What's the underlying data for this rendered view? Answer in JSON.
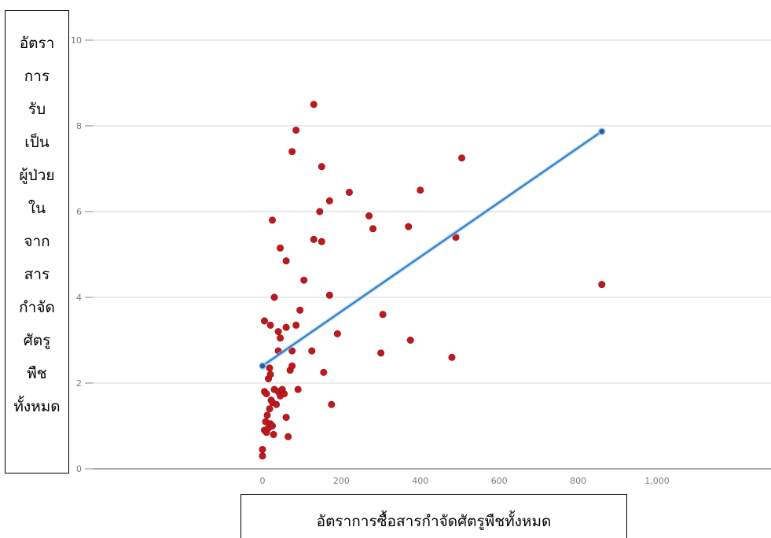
{
  "chart_data": {
    "type": "scatter",
    "xlabel": "อัตราการซื้อสารกำจัดศัตรูพืชทั้งหมด",
    "ylabel_lines": [
      "อัตรา",
      "การ",
      "รับ",
      "เป็น",
      "ผู้ป่วย",
      "ใน",
      "จาก",
      "สาร",
      "กำจัด",
      "ศัตรู",
      "พืช",
      "ทั้งหมด"
    ],
    "xlim": [
      0,
      1000
    ],
    "ylim": [
      0,
      10
    ],
    "x_ticks": [
      "0",
      "200",
      "400",
      "600",
      "800",
      "1,000"
    ],
    "y_ticks": [
      "0",
      "2",
      "4",
      "6",
      "8",
      "10"
    ],
    "grid": "horizontal",
    "colors": {
      "points": "#c0181f",
      "trend": "#2a7fd0",
      "grid": "#d4d4d4",
      "axis": "#8a8a8a"
    },
    "points": [
      {
        "x": 0,
        "y": 0.3
      },
      {
        "x": 0,
        "y": 0.45
      },
      {
        "x": 5,
        "y": 0.9
      },
      {
        "x": 8,
        "y": 1.1
      },
      {
        "x": 10,
        "y": 0.85
      },
      {
        "x": 12,
        "y": 1.25
      },
      {
        "x": 15,
        "y": 0.95
      },
      {
        "x": 18,
        "y": 1.4
      },
      {
        "x": 20,
        "y": 1.05
      },
      {
        "x": 22,
        "y": 1.6
      },
      {
        "x": 25,
        "y": 1.0
      },
      {
        "x": 28,
        "y": 0.8
      },
      {
        "x": 5,
        "y": 1.8
      },
      {
        "x": 10,
        "y": 1.75
      },
      {
        "x": 15,
        "y": 2.1
      },
      {
        "x": 18,
        "y": 2.35
      },
      {
        "x": 20,
        "y": 2.2
      },
      {
        "x": 25,
        "y": 1.55
      },
      {
        "x": 30,
        "y": 1.85
      },
      {
        "x": 35,
        "y": 1.5
      },
      {
        "x": 40,
        "y": 1.8
      },
      {
        "x": 45,
        "y": 1.7
      },
      {
        "x": 50,
        "y": 1.85
      },
      {
        "x": 55,
        "y": 1.75
      },
      {
        "x": 60,
        "y": 1.2
      },
      {
        "x": 65,
        "y": 0.75
      },
      {
        "x": 70,
        "y": 2.3
      },
      {
        "x": 75,
        "y": 2.4
      },
      {
        "x": 90,
        "y": 1.85
      },
      {
        "x": 5,
        "y": 3.45
      },
      {
        "x": 20,
        "y": 3.35
      },
      {
        "x": 30,
        "y": 4.0
      },
      {
        "x": 40,
        "y": 3.2
      },
      {
        "x": 45,
        "y": 3.05
      },
      {
        "x": 40,
        "y": 2.75
      },
      {
        "x": 60,
        "y": 3.3
      },
      {
        "x": 75,
        "y": 2.75
      },
      {
        "x": 85,
        "y": 3.35
      },
      {
        "x": 95,
        "y": 3.7
      },
      {
        "x": 25,
        "y": 5.8
      },
      {
        "x": 45,
        "y": 5.15
      },
      {
        "x": 60,
        "y": 4.85
      },
      {
        "x": 105,
        "y": 4.4
      },
      {
        "x": 75,
        "y": 7.4
      },
      {
        "x": 85,
        "y": 7.9
      },
      {
        "x": 130,
        "y": 8.5
      },
      {
        "x": 150,
        "y": 7.05
      },
      {
        "x": 130,
        "y": 5.35
      },
      {
        "x": 145,
        "y": 6.0
      },
      {
        "x": 150,
        "y": 5.3
      },
      {
        "x": 170,
        "y": 6.25
      },
      {
        "x": 220,
        "y": 6.45
      },
      {
        "x": 170,
        "y": 4.05
      },
      {
        "x": 125,
        "y": 2.75
      },
      {
        "x": 155,
        "y": 2.25
      },
      {
        "x": 175,
        "y": 1.5
      },
      {
        "x": 190,
        "y": 3.15
      },
      {
        "x": 270,
        "y": 5.9
      },
      {
        "x": 280,
        "y": 5.6
      },
      {
        "x": 300,
        "y": 2.7
      },
      {
        "x": 305,
        "y": 3.6
      },
      {
        "x": 370,
        "y": 5.65
      },
      {
        "x": 375,
        "y": 3.0
      },
      {
        "x": 400,
        "y": 6.5
      },
      {
        "x": 480,
        "y": 2.6
      },
      {
        "x": 490,
        "y": 5.4
      },
      {
        "x": 505,
        "y": 7.25
      },
      {
        "x": 860,
        "y": 4.3
      }
    ],
    "trendline": [
      {
        "x": 0,
        "y": 2.4
      },
      {
        "x": 860,
        "y": 7.87
      }
    ]
  }
}
